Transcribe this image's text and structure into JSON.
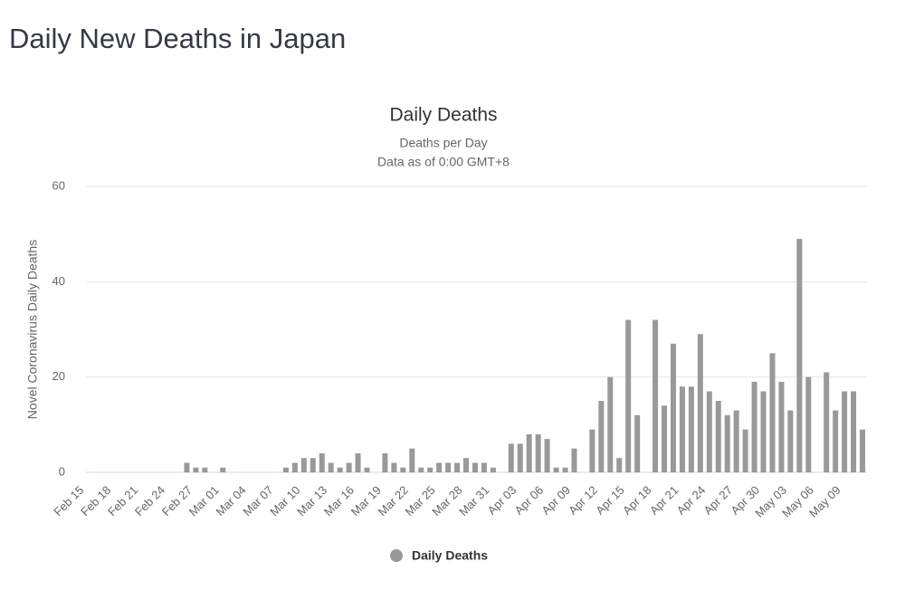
{
  "header": {
    "title": "Daily New Deaths in Japan"
  },
  "chart_data": {
    "type": "bar",
    "title": "Daily Deaths",
    "subtitle": "Deaths per Day",
    "subtitle2": "Data as of 0:00 GMT+8",
    "y_label": "Novel Coronavirus Daily Deaths",
    "categories": [
      "Feb 15",
      null,
      null,
      "Feb 18",
      null,
      null,
      "Feb 21",
      null,
      null,
      "Feb 24",
      null,
      null,
      "Feb 27",
      null,
      null,
      "Mar 01",
      null,
      null,
      "Mar 04",
      null,
      null,
      "Mar 07",
      null,
      null,
      "Mar 10",
      null,
      null,
      "Mar 13",
      null,
      null,
      "Mar 16",
      null,
      null,
      "Mar 19",
      null,
      null,
      "Mar 22",
      null,
      null,
      "Mar 25",
      null,
      null,
      "Mar 28",
      null,
      null,
      "Mar 31",
      null,
      null,
      "Apr 03",
      null,
      null,
      "Apr 06",
      null,
      null,
      "Apr 09",
      null,
      null,
      "Apr 12",
      null,
      null,
      "Apr 15",
      null,
      null,
      "Apr 18",
      null,
      null,
      "Apr 21",
      null,
      null,
      "Apr 24",
      null,
      null,
      "Apr 27",
      null,
      null,
      "Apr 30",
      null,
      null,
      "May 03",
      null,
      null,
      "May 06",
      null,
      null,
      "May 09",
      null,
      null,
      null
    ],
    "series": [
      {
        "name": "Daily Deaths",
        "color": "#999999",
        "values": [
          0,
          0,
          0,
          0,
          0,
          0,
          0,
          0,
          0,
          0,
          0,
          0,
          2,
          1,
          1,
          0,
          1,
          0,
          0,
          0,
          0,
          0,
          0,
          1,
          2,
          3,
          3,
          4,
          2,
          1,
          2,
          4,
          1,
          0,
          4,
          2,
          1,
          5,
          1,
          1,
          2,
          2,
          2,
          3,
          2,
          2,
          1,
          0,
          6,
          6,
          8,
          8,
          7,
          1,
          1,
          5,
          0,
          9,
          15,
          20,
          3,
          32,
          12,
          0,
          32,
          14,
          27,
          18,
          18,
          29,
          17,
          15,
          12,
          13,
          9,
          19,
          17,
          25,
          19,
          13,
          49,
          20,
          0,
          21,
          13,
          17,
          17,
          9
        ]
      }
    ],
    "ylim": [
      0,
      60
    ],
    "yticks": [
      0,
      20,
      40,
      60
    ],
    "grid": true,
    "legend": "bottom"
  }
}
